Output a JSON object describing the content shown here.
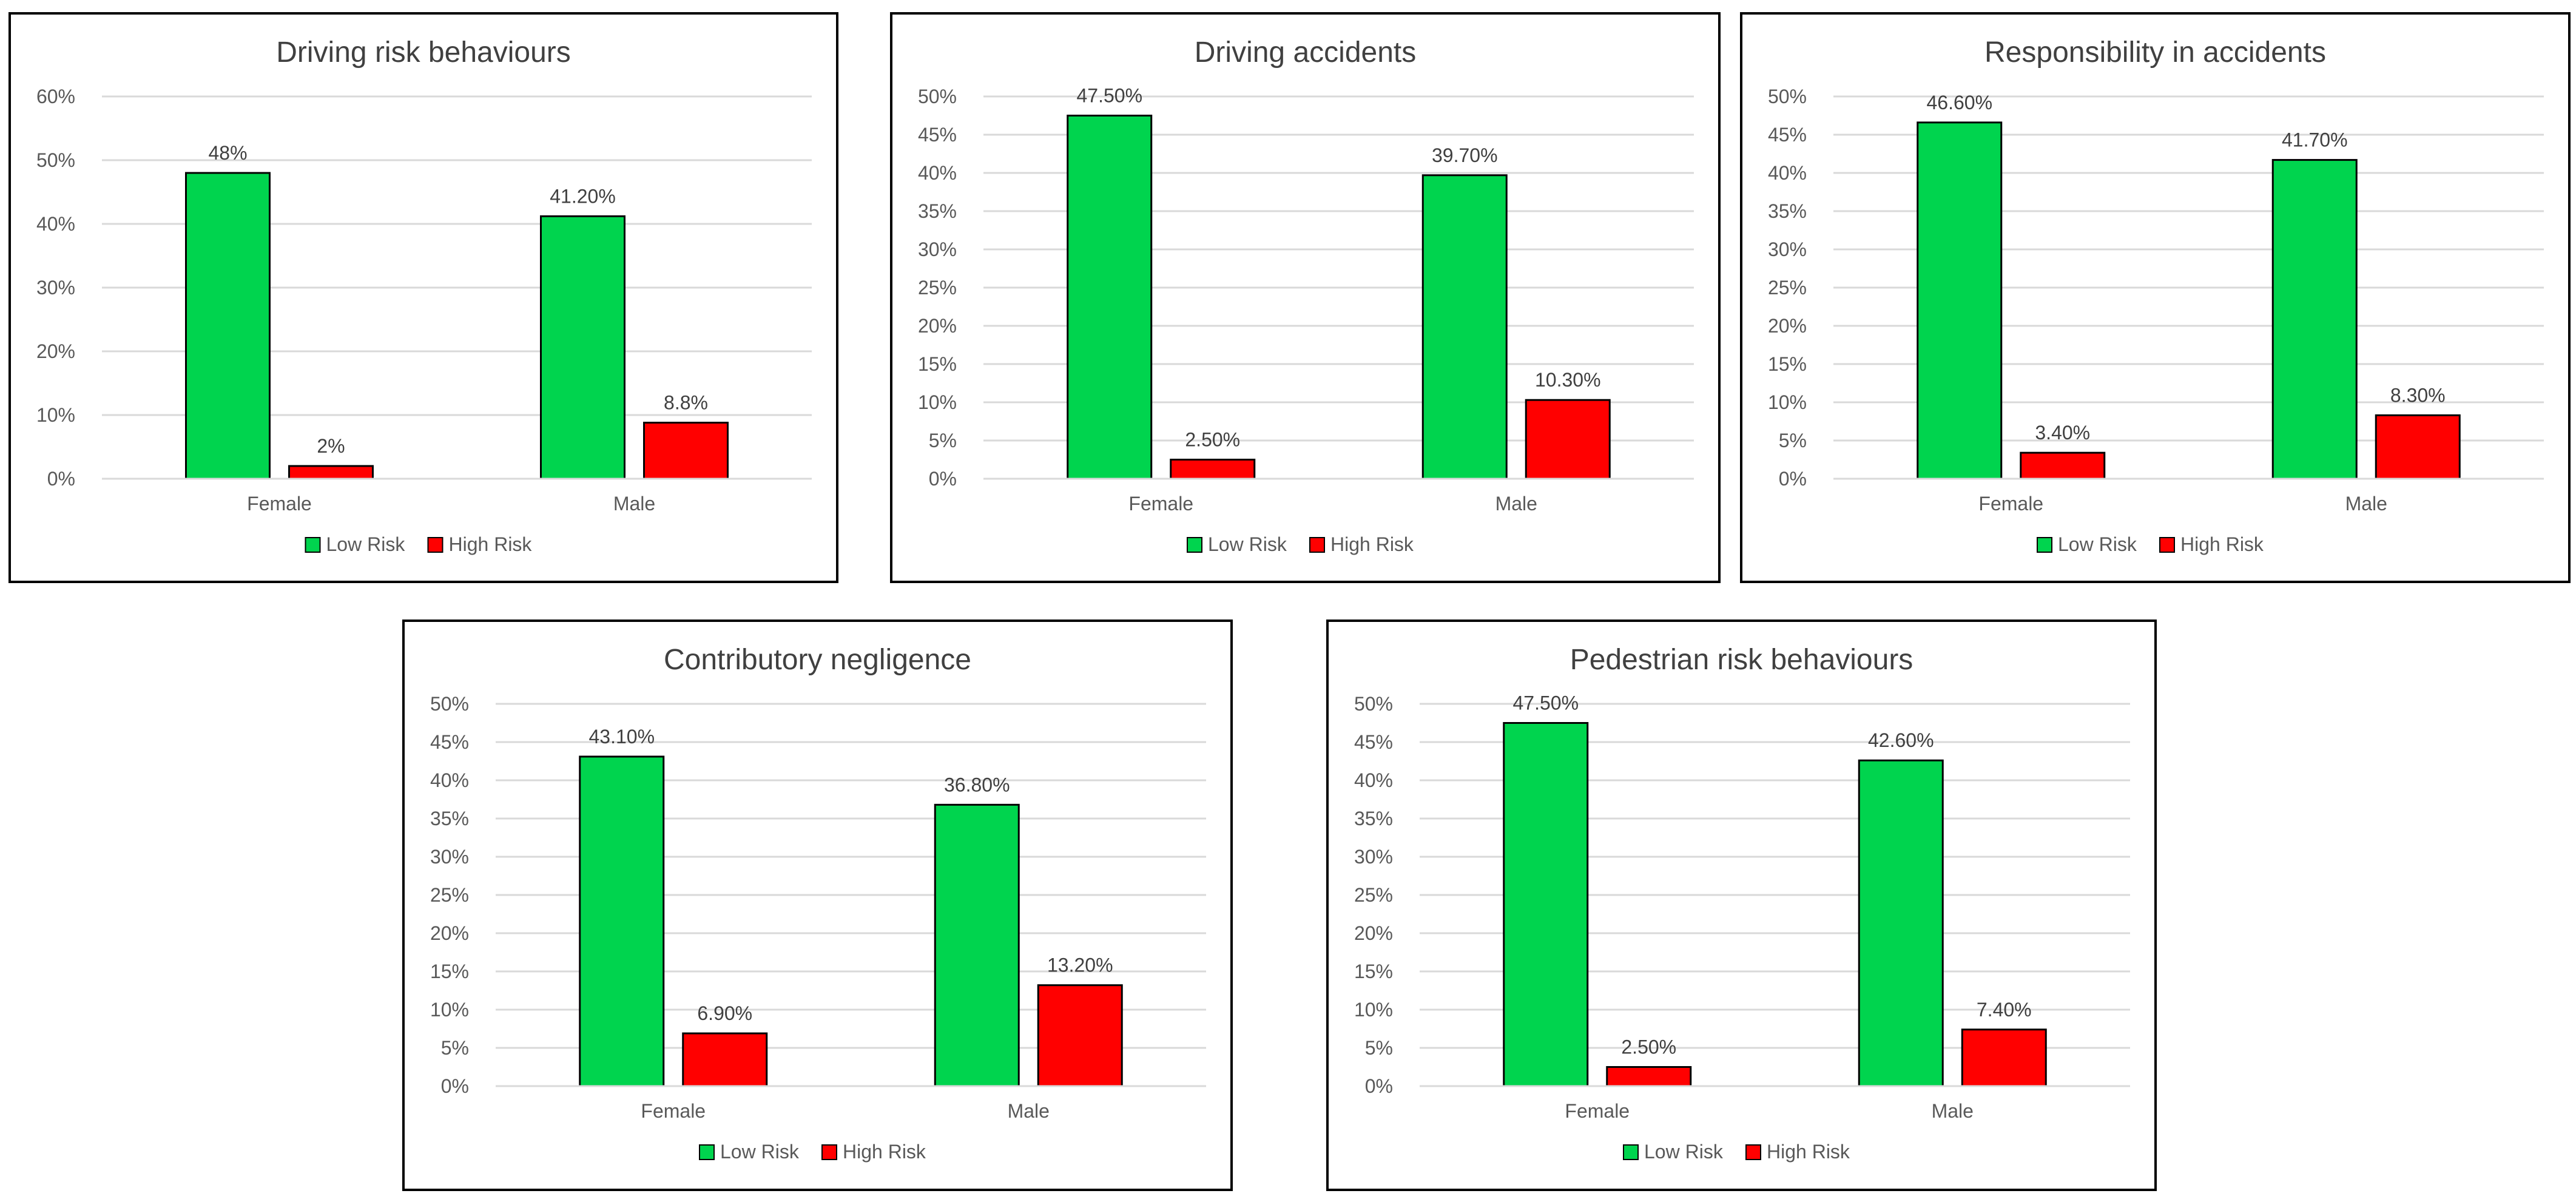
{
  "chart_data": [
    {
      "type": "bar",
      "title": "Driving risk behaviours",
      "categories": [
        "Female",
        "Male"
      ],
      "series": [
        {
          "name": "Low Risk",
          "color": "#00d44e",
          "values": [
            48,
            41.2
          ],
          "labels": [
            "48%",
            "41.20%"
          ]
        },
        {
          "name": "High Risk",
          "color": "#ff0000",
          "values": [
            2,
            8.8
          ],
          "labels": [
            "2%",
            "8.8%"
          ]
        }
      ],
      "ylim": [
        0,
        60
      ],
      "yticks": [
        "0%",
        "10%",
        "20%",
        "30%",
        "40%",
        "50%",
        "60%"
      ],
      "xlabel": "",
      "ylabel": "",
      "grid": true,
      "legend": "bottom"
    },
    {
      "type": "bar",
      "title": "Driving accidents",
      "categories": [
        "Female",
        "Male"
      ],
      "series": [
        {
          "name": "Low Risk",
          "color": "#00d44e",
          "values": [
            47.5,
            39.7
          ],
          "labels": [
            "47.50%",
            "39.70%"
          ]
        },
        {
          "name": "High Risk",
          "color": "#ff0000",
          "values": [
            2.5,
            10.3
          ],
          "labels": [
            "2.50%",
            "10.30%"
          ]
        }
      ],
      "ylim": [
        0,
        50
      ],
      "yticks": [
        "0%",
        "5%",
        "10%",
        "15%",
        "20%",
        "25%",
        "30%",
        "35%",
        "40%",
        "45%",
        "50%"
      ],
      "xlabel": "",
      "ylabel": "",
      "grid": true,
      "legend": "bottom"
    },
    {
      "type": "bar",
      "title": "Responsibility in accidents",
      "categories": [
        "Female",
        "Male"
      ],
      "series": [
        {
          "name": "Low Risk",
          "color": "#00d44e",
          "values": [
            46.6,
            41.7
          ],
          "labels": [
            "46.60%",
            "41.70%"
          ]
        },
        {
          "name": "High Risk",
          "color": "#ff0000",
          "values": [
            3.4,
            8.3
          ],
          "labels": [
            "3.40%",
            "8.30%"
          ]
        }
      ],
      "ylim": [
        0,
        50
      ],
      "yticks": [
        "0%",
        "5%",
        "10%",
        "15%",
        "20%",
        "25%",
        "30%",
        "35%",
        "40%",
        "45%",
        "50%"
      ],
      "xlabel": "",
      "ylabel": "",
      "grid": true,
      "legend": "bottom"
    },
    {
      "type": "bar",
      "title": "Contributory negligence",
      "categories": [
        "Female",
        "Male"
      ],
      "series": [
        {
          "name": "Low Risk",
          "color": "#00d44e",
          "values": [
            43.1,
            36.8
          ],
          "labels": [
            "43.10%",
            "36.80%"
          ]
        },
        {
          "name": "High Risk",
          "color": "#ff0000",
          "values": [
            6.9,
            13.2
          ],
          "labels": [
            "6.90%",
            "13.20%"
          ]
        }
      ],
      "ylim": [
        0,
        50
      ],
      "yticks": [
        "0%",
        "5%",
        "10%",
        "15%",
        "20%",
        "25%",
        "30%",
        "35%",
        "40%",
        "45%",
        "50%"
      ],
      "xlabel": "",
      "ylabel": "",
      "grid": true,
      "legend": "bottom"
    },
    {
      "type": "bar",
      "title": "Pedestrian risk behaviours",
      "categories": [
        "Female",
        "Male"
      ],
      "series": [
        {
          "name": "Low Risk",
          "color": "#00d44e",
          "values": [
            47.5,
            42.6
          ],
          "labels": [
            "47.50%",
            "42.60%"
          ]
        },
        {
          "name": "High Risk",
          "color": "#ff0000",
          "values": [
            2.5,
            7.4
          ],
          "labels": [
            "2.50%",
            "7.40%"
          ]
        }
      ],
      "ylim": [
        0,
        50
      ],
      "yticks": [
        "0%",
        "5%",
        "10%",
        "15%",
        "20%",
        "25%",
        "30%",
        "35%",
        "40%",
        "45%",
        "50%"
      ],
      "xlabel": "",
      "ylabel": "",
      "grid": true,
      "legend": "bottom"
    }
  ]
}
